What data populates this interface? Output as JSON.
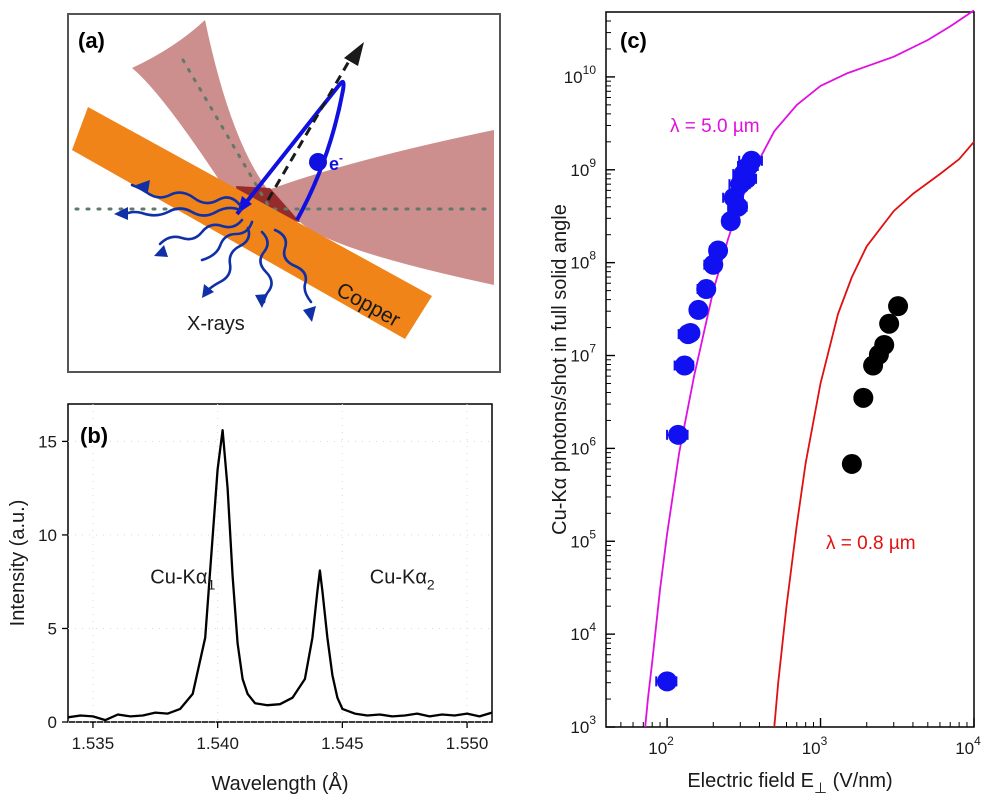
{
  "panels": {
    "a": {
      "letter": "(a)",
      "copper_label": "Copper",
      "xrays_label": "X-rays",
      "electron_label": "e",
      "electron_sup": "-",
      "colors": {
        "laser": "#c47a7a",
        "laser_core": "#8b1a1a",
        "copper": "#f08418",
        "electron": "#1010e0",
        "xrays": "#1030a8",
        "axis_dots": "#607a6a"
      }
    },
    "b": {
      "letter": "(b)"
    },
    "c": {
      "letter": "(c)"
    }
  },
  "chart_data": [
    {
      "id": "b",
      "type": "line",
      "xlabel": "Wavelength (Å)",
      "ylabel": "Intensity (a.u.)",
      "xlim": [
        1.534,
        1.551
      ],
      "ylim": [
        0,
        17
      ],
      "xticks": [
        {
          "v": 1.535,
          "label": "1.535"
        },
        {
          "v": 1.54,
          "label": "1.540"
        },
        {
          "v": 1.545,
          "label": "1.545"
        },
        {
          "v": 1.55,
          "label": "1.550"
        }
      ],
      "yticks": [
        {
          "v": 0,
          "label": "0"
        },
        {
          "v": 5,
          "label": "5"
        },
        {
          "v": 10,
          "label": "10"
        },
        {
          "v": 15,
          "label": "15"
        }
      ],
      "annotations": [
        {
          "base": "Cu-Kα",
          "sub": "1",
          "x": 1.5373,
          "y": 7.4
        },
        {
          "base": "Cu-Kα",
          "sub": "2",
          "x": 1.5461,
          "y": 7.4
        }
      ],
      "color": "#000000",
      "series": [
        {
          "x": [
            1.534,
            1.5345,
            1.535,
            1.5355,
            1.536,
            1.5365,
            1.537,
            1.5375,
            1.538,
            1.5385,
            1.539,
            1.5395,
            1.54,
            1.5402,
            1.5404,
            1.5406,
            1.5408,
            1.541,
            1.5412,
            1.5415,
            1.542,
            1.5425,
            1.543,
            1.5435,
            1.5438,
            1.544,
            1.5441,
            1.5442,
            1.5444,
            1.5446,
            1.5448,
            1.545,
            1.5455,
            1.546,
            1.5465,
            1.547,
            1.5475,
            1.548,
            1.5485,
            1.549,
            1.5495,
            1.55,
            1.5505,
            1.551
          ],
          "y": [
            0.25,
            0.35,
            0.3,
            0.1,
            0.4,
            0.3,
            0.35,
            0.5,
            0.45,
            0.7,
            1.5,
            4.5,
            13.5,
            15.6,
            12.5,
            7.8,
            4.2,
            2.3,
            1.5,
            1.0,
            0.9,
            0.95,
            1.3,
            2.3,
            4.5,
            7.0,
            8.1,
            7.0,
            4.5,
            2.5,
            1.3,
            0.7,
            0.45,
            0.35,
            0.4,
            0.3,
            0.35,
            0.45,
            0.3,
            0.4,
            0.35,
            0.45,
            0.3,
            0.5
          ]
        }
      ]
    },
    {
      "id": "c",
      "type": "scatter",
      "xlabel": "Electric field E⊥ (V/nm)",
      "ylabel": "Cu-Kα photons/shot in full solid angle",
      "xscale": "log",
      "yscale": "log",
      "xlim": [
        40,
        10000
      ],
      "ylim": [
        1000,
        50000000000
      ],
      "xticks": [
        {
          "v": 100,
          "base": "10",
          "exp": "2"
        },
        {
          "v": 1000,
          "base": "10",
          "exp": "3"
        },
        {
          "v": 10000,
          "base": "10",
          "exp": "4"
        }
      ],
      "yticks": [
        {
          "v": 1000,
          "base": "10",
          "exp": "3"
        },
        {
          "v": 10000,
          "base": "10",
          "exp": "4"
        },
        {
          "v": 100000,
          "base": "10",
          "exp": "5"
        },
        {
          "v": 1000000,
          "base": "10",
          "exp": "6"
        },
        {
          "v": 10000000,
          "base": "10",
          "exp": "7"
        },
        {
          "v": 100000000,
          "base": "10",
          "exp": "8"
        },
        {
          "v": 1000000000,
          "base": "10",
          "exp": "9"
        },
        {
          "v": 10000000000,
          "base": "10",
          "exp": "10"
        }
      ],
      "curves": [
        {
          "label": "λ = 5.0 µm",
          "color": "#e010e0",
          "x": [
            72,
            75,
            80,
            90,
            100,
            120,
            150,
            200,
            250,
            300,
            400,
            500,
            700,
            1000,
            1500,
            2000,
            3000,
            5000,
            7000,
            10000
          ],
          "y": [
            1000,
            2000,
            5000,
            30000,
            120000,
            900000,
            6000000,
            50000000,
            180000000,
            450000000,
            1300000000,
            2600000000,
            5000000000,
            8000000000,
            11000000000,
            13000000000,
            16500000000,
            25000000000,
            35000000000,
            52000000000
          ]
        },
        {
          "label": "λ = 0.8 µm",
          "color": "#e01010",
          "x": [
            500,
            530,
            600,
            700,
            800,
            1000,
            1300,
            1600,
            2000,
            3000,
            4000,
            6000,
            8000,
            10000
          ],
          "y": [
            1000,
            3000,
            20000,
            150000,
            700000,
            5000000,
            28000000,
            70000000,
            150000000,
            360000000,
            550000000,
            900000000,
            1300000000,
            2000000000
          ]
        }
      ],
      "series": [
        {
          "color": "#1010f0",
          "error_bars": true,
          "x": [
            100,
            118,
            130,
            137,
            142,
            160,
            180,
            200,
            215,
            260,
            272,
            290,
            300,
            315,
            330,
            340,
            355
          ],
          "y": [
            3100,
            1400000,
            7800000,
            17000000,
            17500000,
            31000000,
            52000000,
            95000000,
            135000000,
            280000000,
            500000000,
            400000000,
            700000000,
            900000000,
            800000000,
            1100000000,
            1250000000
          ],
          "xerr": [
            15,
            18,
            18,
            18,
            18,
            18,
            22,
            25,
            25,
            30,
            40,
            40,
            45,
            45,
            50,
            50,
            60
          ]
        },
        {
          "color": "#000000",
          "error_bars": false,
          "x": [
            1600,
            1900,
            2200,
            2400,
            2600,
            2800,
            3200
          ],
          "y": [
            680000,
            3500000,
            7800000,
            10200000,
            13000000,
            22000000,
            34000000
          ]
        }
      ]
    }
  ]
}
